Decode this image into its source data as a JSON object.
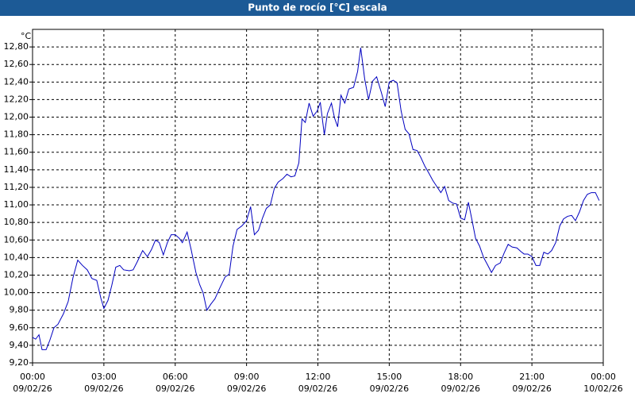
{
  "chart_data": {
    "type": "line",
    "title": "Punto de rocío [°C] escala",
    "unit": "°C",
    "x": [
      0,
      0.13,
      0.27,
      0.4,
      0.57,
      0.73,
      0.9,
      1.07,
      1.3,
      1.5,
      1.7,
      1.9,
      2.1,
      2.3,
      2.5,
      2.7,
      2.87,
      3.0,
      3.17,
      3.33,
      3.5,
      3.67,
      3.83,
      4.07,
      4.23,
      4.4,
      4.63,
      4.83,
      5.0,
      5.17,
      5.33,
      5.5,
      5.67,
      5.83,
      6.0,
      6.17,
      6.3,
      6.5,
      6.67,
      6.87,
      7.03,
      7.17,
      7.33,
      7.5,
      7.67,
      7.87,
      8.1,
      8.27,
      8.43,
      8.6,
      8.8,
      9.0,
      9.17,
      9.33,
      9.5,
      9.67,
      9.83,
      10.0,
      10.17,
      10.33,
      10.53,
      10.7,
      10.87,
      11.03,
      11.2,
      11.33,
      11.47,
      11.63,
      11.8,
      11.97,
      12.1,
      12.27,
      12.4,
      12.57,
      12.7,
      12.83,
      12.97,
      13.13,
      13.3,
      13.5,
      13.67,
      13.8,
      13.97,
      14.13,
      14.3,
      14.47,
      14.67,
      14.83,
      15.0,
      15.17,
      15.33,
      15.5,
      15.67,
      15.83,
      16.0,
      16.17,
      16.33,
      16.5,
      16.67,
      16.83,
      17.0,
      17.17,
      17.33,
      17.5,
      17.67,
      17.83,
      18.0,
      18.17,
      18.33,
      18.5,
      18.63,
      18.8,
      18.97,
      19.13,
      19.3,
      19.47,
      19.67,
      19.83,
      20.0,
      20.17,
      20.37,
      20.53,
      20.67,
      20.83,
      21.0,
      21.17,
      21.33,
      21.5,
      21.67,
      21.83,
      22.0,
      22.17,
      22.33,
      22.5,
      22.67,
      22.83,
      23.0,
      23.17,
      23.33,
      23.5,
      23.67,
      23.83
    ],
    "values": [
      9.49,
      9.47,
      9.52,
      9.35,
      9.35,
      9.46,
      9.6,
      9.64,
      9.76,
      9.9,
      10.17,
      10.37,
      10.31,
      10.26,
      10.16,
      10.14,
      9.94,
      9.82,
      9.91,
      10.08,
      10.29,
      10.31,
      10.26,
      10.25,
      10.26,
      10.35,
      10.48,
      10.41,
      10.49,
      10.6,
      10.57,
      10.43,
      10.57,
      10.66,
      10.66,
      10.62,
      10.57,
      10.69,
      10.49,
      10.23,
      10.09,
      10.0,
      9.8,
      9.87,
      9.93,
      10.05,
      10.18,
      10.21,
      10.53,
      10.72,
      10.76,
      10.82,
      10.98,
      10.66,
      10.71,
      10.85,
      10.96,
      11.0,
      11.19,
      11.26,
      11.3,
      11.35,
      11.32,
      11.33,
      11.48,
      11.98,
      11.94,
      12.16,
      12.01,
      12.07,
      12.17,
      11.8,
      12.04,
      12.16,
      11.99,
      11.89,
      12.25,
      12.16,
      12.32,
      12.34,
      12.52,
      12.79,
      12.43,
      12.2,
      12.41,
      12.46,
      12.28,
      12.12,
      12.4,
      12.42,
      12.39,
      12.07,
      11.86,
      11.81,
      11.63,
      11.62,
      11.54,
      11.44,
      11.36,
      11.28,
      11.21,
      11.14,
      11.21,
      11.05,
      11.02,
      11.01,
      10.85,
      10.83,
      11.03,
      10.8,
      10.62,
      10.53,
      10.4,
      10.32,
      10.23,
      10.31,
      10.34,
      10.45,
      10.55,
      10.52,
      10.51,
      10.47,
      10.44,
      10.44,
      10.41,
      10.31,
      10.31,
      10.46,
      10.44,
      10.48,
      10.57,
      10.76,
      10.84,
      10.87,
      10.88,
      10.82,
      10.92,
      11.05,
      11.12,
      11.14,
      11.14,
      11.05
    ],
    "color": "#0000c0",
    "xlim": [
      0,
      24
    ],
    "ylim": [
      9.2,
      13.0
    ],
    "xticks": [
      {
        "value": 0,
        "label": "00:00"
      },
      {
        "value": 3,
        "label": "03:00"
      },
      {
        "value": 6,
        "label": "06:00"
      },
      {
        "value": 9,
        "label": "09:00"
      },
      {
        "value": 12,
        "label": "12:00"
      },
      {
        "value": 15,
        "label": "15:00"
      },
      {
        "value": 18,
        "label": "18:00"
      },
      {
        "value": 21,
        "label": "21:00"
      },
      {
        "value": 24,
        "label": "00:00"
      }
    ],
    "xtick_dates": [
      "09/02/26",
      "09/02/26",
      "09/02/26",
      "09/02/26",
      "09/02/26",
      "09/02/26",
      "09/02/26",
      "09/02/26",
      "10/02/26"
    ],
    "yticks": [
      {
        "value": 9.2,
        "label": "9,20"
      },
      {
        "value": 9.4,
        "label": "9,40"
      },
      {
        "value": 9.6,
        "label": "9,60"
      },
      {
        "value": 9.8,
        "label": "9,80"
      },
      {
        "value": 10.0,
        "label": "10,00"
      },
      {
        "value": 10.2,
        "label": "10,20"
      },
      {
        "value": 10.4,
        "label": "10,40"
      },
      {
        "value": 10.6,
        "label": "10,60"
      },
      {
        "value": 10.8,
        "label": "10,80"
      },
      {
        "value": 11.0,
        "label": "11,00"
      },
      {
        "value": 11.2,
        "label": "11,20"
      },
      {
        "value": 11.4,
        "label": "11,40"
      },
      {
        "value": 11.6,
        "label": "11,60"
      },
      {
        "value": 11.8,
        "label": "11,80"
      },
      {
        "value": 12.0,
        "label": "12,00"
      },
      {
        "value": 12.2,
        "label": "12,20"
      },
      {
        "value": 12.4,
        "label": "12,40"
      },
      {
        "value": 12.6,
        "label": "12,60"
      },
      {
        "value": 12.8,
        "label": "12,80"
      }
    ],
    "grid": true
  }
}
